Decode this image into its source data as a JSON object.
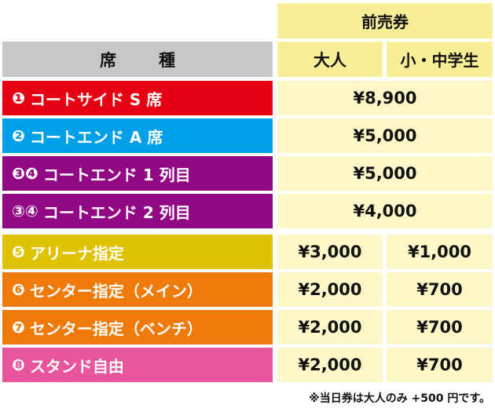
{
  "header": {
    "advance": "前売券",
    "seat_label_a": "席",
    "seat_label_b": "種",
    "adult": "大人",
    "child": "小・中学生"
  },
  "rows": [
    {
      "badge": "❶",
      "name": "コートサイド S 席",
      "color": "#e60012",
      "adult": "¥8,900",
      "child": null
    },
    {
      "badge": "❷",
      "name": "コートエンド A 席",
      "color": "#00a0e9",
      "adult": "¥5,000",
      "child": null
    },
    {
      "badge": "❸❹",
      "name": "コートエンド 1 列目",
      "color": "#920783",
      "adult": "¥5,000",
      "child": null
    },
    {
      "badge": "③④",
      "name": "コートエンド 2 列目",
      "color": "#920783",
      "adult": "¥4,000",
      "child": null
    },
    {
      "badge": "❺",
      "name": "アリーナ指定",
      "color": "#dfc300",
      "adult": "¥3,000",
      "child": "¥1,000"
    },
    {
      "badge": "❻",
      "name": "センター指定（メイン）",
      "color": "#ef7a0a",
      "adult": "¥2,000",
      "child": "¥700"
    },
    {
      "badge": "❼",
      "name": "センター指定（ベンチ）",
      "color": "#ef7a0a",
      "adult": "¥2,000",
      "child": "¥700"
    },
    {
      "badge": "❽",
      "name": "スタンド自由",
      "color": "#e9559d",
      "adult": "¥2,000",
      "child": "¥700"
    }
  ],
  "note": "※当日券は大人のみ +500 円です。"
}
